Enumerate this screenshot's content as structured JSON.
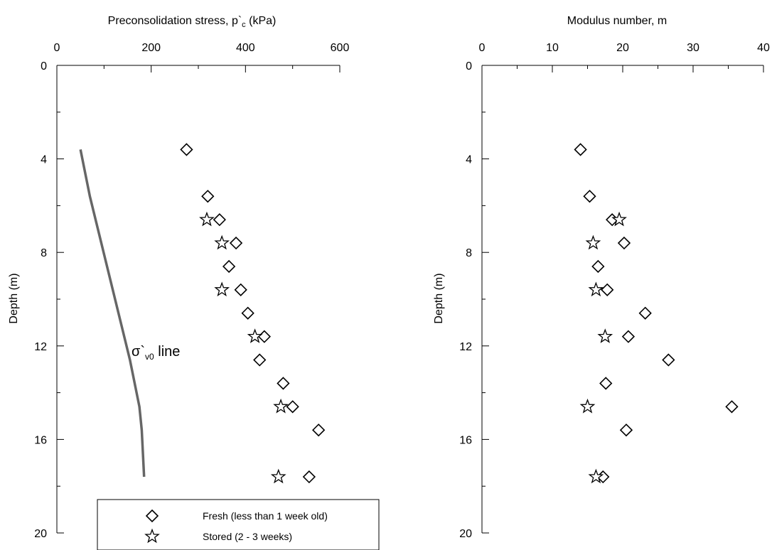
{
  "chart_data": [
    {
      "type": "scatter",
      "title": "",
      "xlabel": "Preconsolidation stress, p`c (kPa)",
      "xlabel_parts": [
        "Preconsolidation stress, p`",
        "c",
        " (kPa)"
      ],
      "ylabel": "Depth (m)",
      "xlim": [
        0,
        600
      ],
      "ylim": [
        20,
        0
      ],
      "x_ticks": [
        0,
        200,
        400,
        600
      ],
      "y_ticks": [
        0,
        4,
        8,
        12,
        16,
        20
      ],
      "x_axis_position": "top",
      "y_axis_inverted": true,
      "grid": false,
      "series": [
        {
          "name": "Fresh (less than 1 week old)",
          "marker": "diamond",
          "points": [
            {
              "x": 275,
              "y": 3.6
            },
            {
              "x": 320,
              "y": 5.6
            },
            {
              "x": 345,
              "y": 6.6
            },
            {
              "x": 380,
              "y": 7.6
            },
            {
              "x": 365,
              "y": 8.6
            },
            {
              "x": 390,
              "y": 9.6
            },
            {
              "x": 405,
              "y": 10.6
            },
            {
              "x": 440,
              "y": 11.6
            },
            {
              "x": 430,
              "y": 12.6
            },
            {
              "x": 480,
              "y": 13.6
            },
            {
              "x": 500,
              "y": 14.6
            },
            {
              "x": 555,
              "y": 15.6
            },
            {
              "x": 535,
              "y": 17.6
            }
          ]
        },
        {
          "name": "Stored (2 - 3 weeks)",
          "marker": "star",
          "points": [
            {
              "x": 318,
              "y": 6.6
            },
            {
              "x": 350,
              "y": 7.6
            },
            {
              "x": 350,
              "y": 9.6
            },
            {
              "x": 420,
              "y": 11.6
            },
            {
              "x": 475,
              "y": 14.6
            },
            {
              "x": 470,
              "y": 17.6
            }
          ]
        }
      ],
      "line": {
        "label_parts": [
          "σ`",
          "v0",
          " line"
        ],
        "color": "#666666",
        "points": [
          {
            "x": 50,
            "y": 3.6
          },
          {
            "x": 70,
            "y": 5.6
          },
          {
            "x": 155,
            "y": 12.6
          },
          {
            "x": 175,
            "y": 14.6
          },
          {
            "x": 180,
            "y": 15.6
          },
          {
            "x": 185,
            "y": 17.6
          }
        ]
      },
      "legend": {
        "placement": "bottom-right",
        "entries": [
          {
            "marker": "diamond",
            "label": "Fresh (less than 1 week old)"
          },
          {
            "marker": "star",
            "label": "Stored (2 - 3 weeks)"
          }
        ]
      }
    },
    {
      "type": "scatter",
      "title": "",
      "xlabel": "Modulus number, m",
      "ylabel": "Depth (m)",
      "xlim": [
        0,
        40
      ],
      "ylim": [
        20,
        0
      ],
      "x_ticks": [
        0,
        10,
        20,
        30,
        40
      ],
      "y_ticks": [
        0,
        4,
        8,
        12,
        16,
        20
      ],
      "x_axis_position": "top",
      "y_axis_inverted": true,
      "grid": false,
      "series": [
        {
          "name": "Fresh (less than 1 week old)",
          "marker": "diamond",
          "points": [
            {
              "x": 14,
              "y": 3.6
            },
            {
              "x": 15.3,
              "y": 5.6
            },
            {
              "x": 18.5,
              "y": 6.6
            },
            {
              "x": 20.2,
              "y": 7.6
            },
            {
              "x": 16.5,
              "y": 8.6
            },
            {
              "x": 17.8,
              "y": 9.6
            },
            {
              "x": 23.2,
              "y": 10.6
            },
            {
              "x": 20.8,
              "y": 11.6
            },
            {
              "x": 26.5,
              "y": 12.6
            },
            {
              "x": 17.6,
              "y": 13.6
            },
            {
              "x": 35.5,
              "y": 14.6
            },
            {
              "x": 20.5,
              "y": 15.6
            },
            {
              "x": 17.2,
              "y": 17.6
            }
          ]
        },
        {
          "name": "Stored (2 - 3 weeks)",
          "marker": "star",
          "points": [
            {
              "x": 19.5,
              "y": 6.6
            },
            {
              "x": 15.8,
              "y": 7.6
            },
            {
              "x": 16.2,
              "y": 9.6
            },
            {
              "x": 17.5,
              "y": 11.6
            },
            {
              "x": 15,
              "y": 14.6
            },
            {
              "x": 16.2,
              "y": 17.6
            }
          ]
        }
      ]
    }
  ]
}
